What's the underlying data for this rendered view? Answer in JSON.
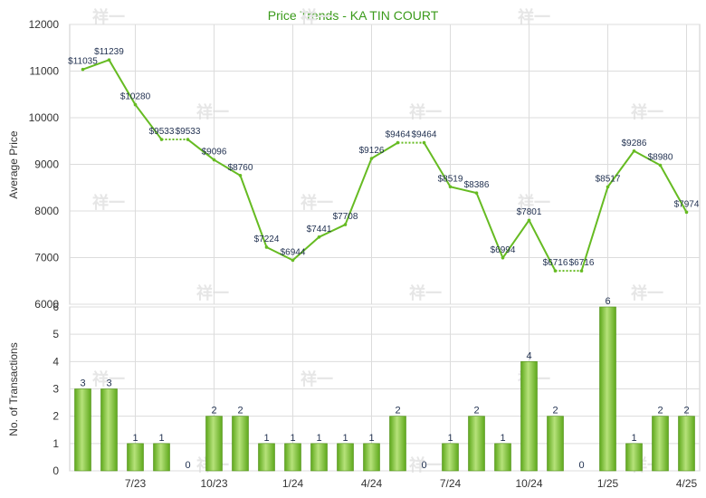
{
  "chart_data": [
    {
      "type": "line",
      "title": "Price Trends - KA TIN COURT",
      "ylabel": "Average Price",
      "ylim": [
        6000,
        12000
      ],
      "yticks": [
        "12000",
        "11000",
        "10000",
        "9000",
        "8000",
        "7000",
        "6000"
      ],
      "grid": true,
      "x": [
        "2023-05",
        "2023-06",
        "2023-07",
        "2023-08",
        "2023-09",
        "2023-10",
        "2023-11",
        "2023-12",
        "2024-01",
        "2024-02",
        "2024-03",
        "2024-04",
        "2024-05",
        "2024-06",
        "2024-07",
        "2024-08",
        "2024-09",
        "2024-10",
        "2024-11",
        "2024-12",
        "2025-01",
        "2025-02",
        "2025-03",
        "2025-04"
      ],
      "series": [
        {
          "values": [
            11035,
            11239,
            10280,
            9533,
            9533,
            9096,
            8760,
            7224,
            6944,
            7441,
            7708,
            9126,
            9464,
            9464,
            8519,
            8386,
            6994,
            7801,
            6716,
            6716,
            8517,
            9286,
            8980,
            7974
          ],
          "labels": [
            "$11035",
            "$11239",
            "$10280",
            "$9533",
            "$9533",
            "$9096",
            "$8760",
            "$7224",
            "$6944",
            "$7441",
            "$7708",
            "$9126",
            "$9464",
            "$9464",
            "$8519",
            "$8386",
            "$6994",
            "$7801",
            "$6716",
            "$6716",
            "$8517",
            "$9286",
            "$8980",
            "$7974"
          ],
          "interpolated_months": [
            "2023-09",
            "2024-06",
            "2024-12"
          ],
          "color": "#66bb22"
        }
      ]
    },
    {
      "type": "bar",
      "ylabel": "No. of Transactions",
      "ylim": [
        0,
        6
      ],
      "yticks": [
        "6",
        "5",
        "4",
        "3",
        "2",
        "1",
        "0"
      ],
      "grid": true,
      "categories": [
        "2023-05",
        "2023-06",
        "2023-07",
        "2023-08",
        "2023-09",
        "2023-10",
        "2023-11",
        "2023-12",
        "2024-01",
        "2024-02",
        "2024-03",
        "2024-04",
        "2024-05",
        "2024-06",
        "2024-07",
        "2024-08",
        "2024-09",
        "2024-10",
        "2024-11",
        "2024-12",
        "2025-01",
        "2025-02",
        "2025-03",
        "2025-04"
      ],
      "xtick_labels": [
        "7/23",
        "10/23",
        "1/24",
        "4/24",
        "7/24",
        "10/24",
        "1/25",
        "4/25"
      ],
      "series": [
        {
          "values": [
            3,
            3,
            1,
            1,
            0,
            2,
            2,
            1,
            1,
            1,
            1,
            1,
            2,
            0,
            1,
            2,
            1,
            4,
            2,
            0,
            6,
            1,
            2,
            2
          ],
          "labels": [
            "3",
            "3",
            "1",
            "1",
            "0",
            "2",
            "2",
            "1",
            "1",
            "1",
            "1",
            "1",
            "2",
            "0",
            "1",
            "2",
            "1",
            "4",
            "2",
            "0",
            "6",
            "1",
            "2",
            "2"
          ],
          "color": "#7cc02c"
        }
      ]
    }
  ],
  "watermark": "祥一"
}
